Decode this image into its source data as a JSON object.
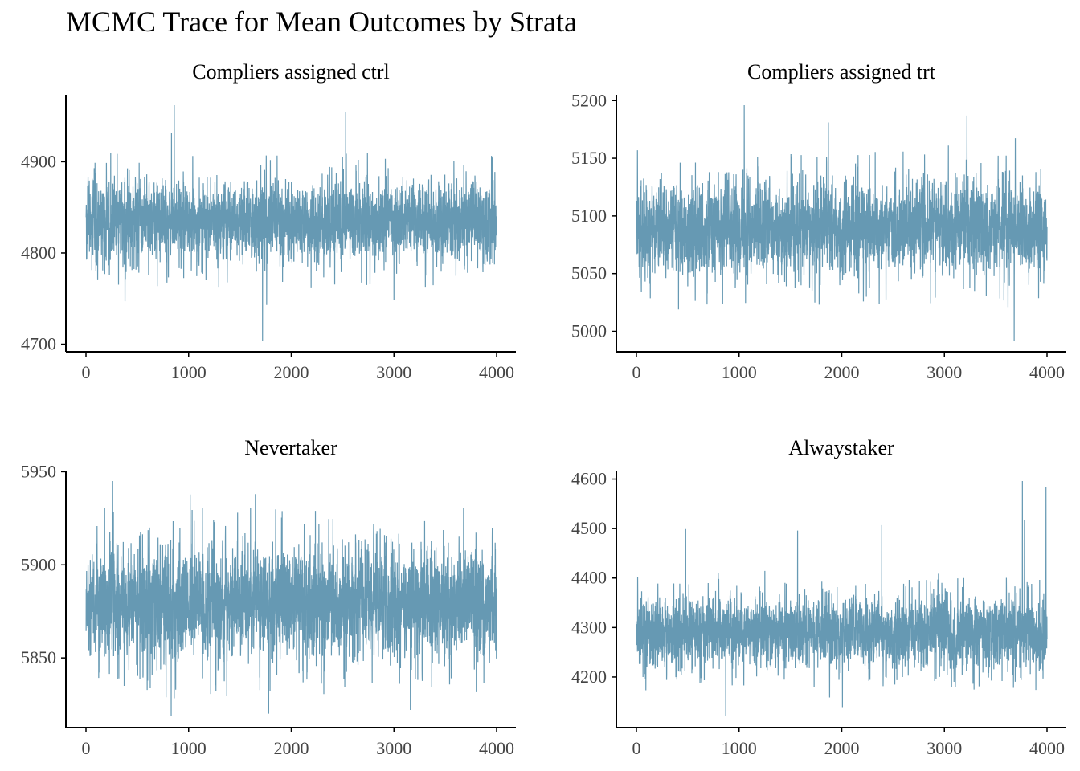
{
  "title": "MCMC Trace for Mean Outcomes by Strata",
  "style": {
    "line_color": "#6699b3",
    "axis_color": "#000000",
    "tick_label_color": "#444444"
  },
  "chart_data": [
    {
      "type": "line",
      "title": "Compliers assigned ctrl",
      "x_range": [
        0,
        4000
      ],
      "x_ticks": [
        0,
        1000,
        2000,
        3000,
        4000
      ],
      "y_range": [
        4704,
        4962
      ],
      "y_ticks": [
        4700,
        4800,
        4900
      ],
      "series_summary": {
        "n_draws": 4000,
        "center": 4835,
        "sd": 20,
        "min": 4704,
        "max": 4962
      },
      "notable_points": [
        {
          "x": 860,
          "y": 4962
        },
        {
          "x": 2530,
          "y": 4955
        },
        {
          "x": 1720,
          "y": 4704
        },
        {
          "x": 1760,
          "y": 4743
        },
        {
          "x": 380,
          "y": 4747
        },
        {
          "x": 3000,
          "y": 4748
        }
      ]
    },
    {
      "type": "line",
      "title": "Compliers assigned trt",
      "x_range": [
        0,
        4000
      ],
      "x_ticks": [
        0,
        1000,
        2000,
        3000,
        4000
      ],
      "y_range": [
        4992,
        5196
      ],
      "y_ticks": [
        5000,
        5050,
        5100,
        5150,
        5200
      ],
      "series_summary": {
        "n_draws": 4000,
        "center": 5090,
        "sd": 18,
        "min": 4992,
        "max": 5196
      },
      "notable_points": [
        {
          "x": 1050,
          "y": 5196
        },
        {
          "x": 3220,
          "y": 5187
        },
        {
          "x": 1870,
          "y": 5181
        },
        {
          "x": 3680,
          "y": 4992
        },
        {
          "x": 3620,
          "y": 5021
        },
        {
          "x": 410,
          "y": 5019
        }
      ]
    },
    {
      "type": "line",
      "title": "Nevertaker",
      "x_range": [
        0,
        4000
      ],
      "x_ticks": [
        0,
        1000,
        2000,
        3000,
        4000
      ],
      "y_range": [
        5819,
        5945
      ],
      "y_ticks": [
        5850,
        5900,
        5950
      ],
      "series_summary": {
        "n_draws": 4000,
        "center": 5880,
        "sd": 14,
        "min": 5819,
        "max": 5945
      },
      "notable_points": [
        {
          "x": 260,
          "y": 5945
        },
        {
          "x": 1650,
          "y": 5938
        },
        {
          "x": 830,
          "y": 5819
        },
        {
          "x": 1780,
          "y": 5820
        },
        {
          "x": 3160,
          "y": 5822
        }
      ]
    },
    {
      "type": "line",
      "title": "Alwaystaker",
      "x_range": [
        0,
        4000
      ],
      "x_ticks": [
        0,
        1000,
        2000,
        3000,
        4000
      ],
      "y_range": [
        4122,
        4596
      ],
      "y_ticks": [
        4200,
        4300,
        4400,
        4500,
        4600
      ],
      "series_summary": {
        "n_draws": 4000,
        "center": 4290,
        "sd": 33,
        "min": 4122,
        "max": 4596
      },
      "notable_points": [
        {
          "x": 3760,
          "y": 4596
        },
        {
          "x": 3990,
          "y": 4583
        },
        {
          "x": 3780,
          "y": 4518
        },
        {
          "x": 2390,
          "y": 4507
        },
        {
          "x": 480,
          "y": 4499
        },
        {
          "x": 1570,
          "y": 4496
        },
        {
          "x": 870,
          "y": 4122
        }
      ]
    }
  ]
}
